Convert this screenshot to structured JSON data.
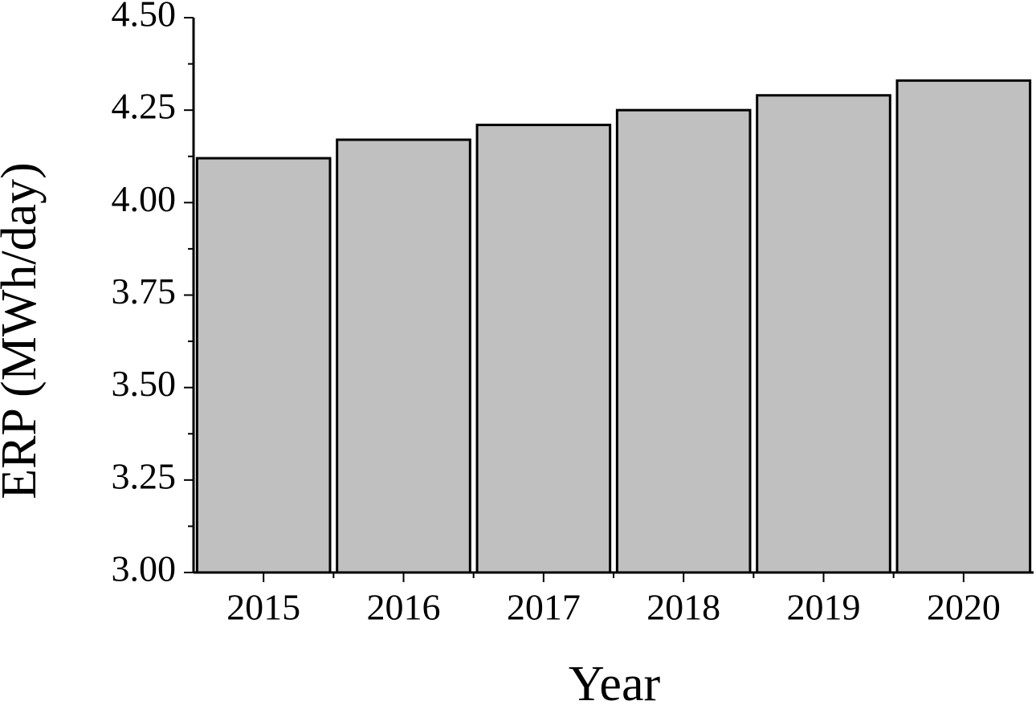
{
  "chart_data": {
    "type": "bar",
    "x_label": "Year",
    "y_label": "ERP (MWh/day)",
    "categories": [
      "2015",
      "2016",
      "2017",
      "2018",
      "2019",
      "2020"
    ],
    "values": [
      4.12,
      4.17,
      4.21,
      4.25,
      4.29,
      4.33
    ],
    "color": "#c0c0c0",
    "ylim": [
      3.0,
      4.5
    ],
    "yticks": [
      {
        "value": 3.0,
        "label": "3.00"
      },
      {
        "value": 3.25,
        "label": "3.25"
      },
      {
        "value": 3.5,
        "label": "3.50"
      },
      {
        "value": 3.75,
        "label": "3.75"
      },
      {
        "value": 4.0,
        "label": "4.00"
      },
      {
        "value": 4.25,
        "label": "4.25"
      },
      {
        "value": 4.5,
        "label": "4.50"
      }
    ],
    "grid": false
  }
}
